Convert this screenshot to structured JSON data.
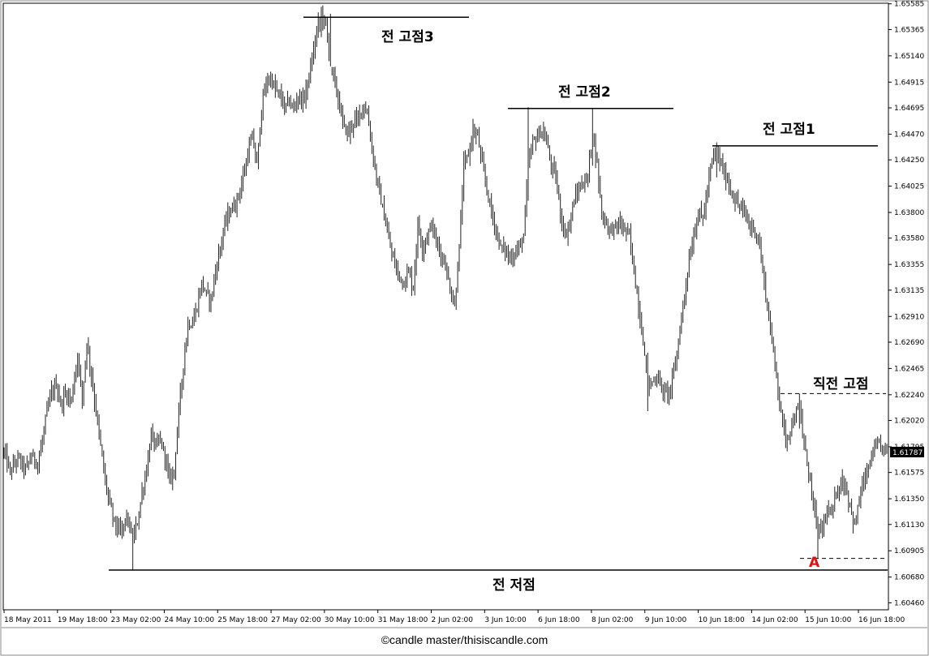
{
  "chart_data": {
    "type": "bar",
    "title": "",
    "xlabel": "",
    "ylabel": "",
    "ylim": [
      1.604,
      1.6559
    ],
    "y_ticks": [
      "1.65585",
      "1.65365",
      "1.65140",
      "1.64915",
      "1.64695",
      "1.64470",
      "1.64250",
      "1.64025",
      "1.63800",
      "1.63580",
      "1.63355",
      "1.63135",
      "1.62910",
      "1.62690",
      "1.62465",
      "1.62240",
      "1.62020",
      "1.61795",
      "1.61575",
      "1.61350",
      "1.61130",
      "1.60905",
      "1.60680",
      "1.60460"
    ],
    "x_ticks": [
      "18 May 2011",
      "19 May 18:00",
      "23 May 02:00",
      "24 May 10:00",
      "25 May 18:00",
      "27 May 02:00",
      "30 May 10:00",
      "31 May 18:00",
      "2 Jun 02:00",
      "3 Jun 10:00",
      "6 Jun 18:00",
      "8 Jun 02:00",
      "9 Jun 10:00",
      "10 Jun 18:00",
      "14 Jun 02:00",
      "15 Jun 10:00",
      "16 Jun 18:00"
    ],
    "current_price": "1.61787",
    "close_path": [
      [
        0,
        1.6175
      ],
      [
        4,
        1.6158
      ],
      [
        9,
        1.617
      ],
      [
        14,
        1.616
      ],
      [
        18,
        1.6172
      ],
      [
        22,
        1.6165
      ],
      [
        25,
        1.6185
      ],
      [
        28,
        1.621
      ],
      [
        31,
        1.6225
      ],
      [
        34,
        1.6233
      ],
      [
        37,
        1.6215
      ],
      [
        40,
        1.6225
      ],
      [
        44,
        1.622
      ],
      [
        48,
        1.6258
      ],
      [
        51,
        1.622
      ],
      [
        54,
        1.627
      ],
      [
        57,
        1.624
      ],
      [
        60,
        1.621
      ],
      [
        63,
        1.618
      ],
      [
        66,
        1.615
      ],
      [
        69,
        1.613
      ],
      [
        72,
        1.6115
      ],
      [
        76,
        1.6105
      ],
      [
        80,
        1.612
      ],
      [
        84,
        1.61
      ],
      [
        87,
        1.6115
      ],
      [
        90,
        1.614
      ],
      [
        93,
        1.616
      ],
      [
        96,
        1.619
      ],
      [
        99,
        1.618
      ],
      [
        102,
        1.6185
      ],
      [
        105,
        1.6172
      ],
      [
        108,
        1.615
      ],
      [
        111,
        1.616
      ],
      [
        114,
        1.621
      ],
      [
        117,
        1.625
      ],
      [
        120,
        1.6285
      ],
      [
        123,
        1.6285
      ],
      [
        126,
        1.63
      ],
      [
        129,
        1.632
      ],
      [
        132,
        1.631
      ],
      [
        135,
        1.6305
      ],
      [
        138,
        1.633
      ],
      [
        141,
        1.635
      ],
      [
        144,
        1.637
      ],
      [
        147,
        1.638
      ],
      [
        150,
        1.6385
      ],
      [
        153,
        1.6395
      ],
      [
        156,
        1.641
      ],
      [
        159,
        1.643
      ],
      [
        162,
        1.6445
      ],
      [
        165,
        1.642
      ],
      [
        168,
        1.647
      ],
      [
        171,
        1.649
      ],
      [
        174,
        1.6495
      ],
      [
        177,
        1.6485
      ],
      [
        180,
        1.648
      ],
      [
        183,
        1.647
      ],
      [
        186,
        1.6475
      ],
      [
        189,
        1.6468
      ],
      [
        192,
        1.648
      ],
      [
        195,
        1.6475
      ],
      [
        198,
        1.649
      ],
      [
        201,
        1.651
      ],
      [
        204,
        1.6535
      ],
      [
        207,
        1.655
      ],
      [
        210,
        1.654
      ],
      [
        213,
        1.6505
      ],
      [
        216,
        1.649
      ],
      [
        219,
        1.647
      ],
      [
        222,
        1.6452
      ],
      [
        225,
        1.6448
      ],
      [
        228,
        1.6458
      ],
      [
        231,
        1.646
      ],
      [
        234,
        1.6472
      ],
      [
        237,
        1.6465
      ],
      [
        240,
        1.6435
      ],
      [
        243,
        1.641
      ],
      [
        246,
        1.639
      ],
      [
        249,
        1.637
      ],
      [
        252,
        1.635
      ],
      [
        255,
        1.6335
      ],
      [
        258,
        1.6325
      ],
      [
        261,
        1.632
      ],
      [
        264,
        1.633
      ],
      [
        267,
        1.6315
      ],
      [
        270,
        1.637
      ],
      [
        273,
        1.635
      ],
      [
        276,
        1.636
      ],
      [
        279,
        1.637
      ],
      [
        282,
        1.6355
      ],
      [
        285,
        1.6345
      ],
      [
        288,
        1.6335
      ],
      [
        291,
        1.6315
      ],
      [
        294,
        1.63
      ],
      [
        297,
        1.635
      ],
      [
        300,
        1.642
      ],
      [
        303,
        1.643
      ],
      [
        306,
        1.645
      ],
      [
        309,
        1.6445
      ],
      [
        312,
        1.642
      ],
      [
        315,
        1.64
      ],
      [
        318,
        1.638
      ],
      [
        321,
        1.6365
      ],
      [
        324,
        1.635
      ],
      [
        327,
        1.6348
      ],
      [
        330,
        1.634
      ],
      [
        333,
        1.6345
      ],
      [
        336,
        1.635
      ],
      [
        339,
        1.636
      ],
      [
        342,
        1.642
      ],
      [
        345,
        1.644
      ],
      [
        348,
        1.6445
      ],
      [
        351,
        1.645
      ],
      [
        354,
        1.644
      ],
      [
        357,
        1.642
      ],
      [
        360,
        1.641
      ],
      [
        363,
        1.638
      ],
      [
        366,
        1.636
      ],
      [
        369,
        1.637
      ],
      [
        372,
        1.639
      ],
      [
        375,
        1.64
      ],
      [
        378,
        1.6405
      ],
      [
        381,
        1.641
      ],
      [
        384,
        1.645
      ],
      [
        387,
        1.642
      ],
      [
        390,
        1.638
      ],
      [
        393,
        1.637
      ],
      [
        396,
        1.6365
      ],
      [
        399,
        1.6368
      ],
      [
        402,
        1.637
      ],
      [
        405,
        1.6365
      ],
      [
        408,
        1.636
      ],
      [
        411,
        1.633
      ],
      [
        414,
        1.63
      ],
      [
        417,
        1.627
      ],
      [
        420,
        1.623
      ],
      [
        423,
        1.6235
      ],
      [
        426,
        1.624
      ],
      [
        429,
        1.623
      ],
      [
        432,
        1.6225
      ],
      [
        435,
        1.623
      ],
      [
        438,
        1.625
      ],
      [
        441,
        1.628
      ],
      [
        444,
        1.631
      ],
      [
        447,
        1.634
      ],
      [
        450,
        1.636
      ],
      [
        453,
        1.638
      ],
      [
        456,
        1.6375
      ],
      [
        459,
        1.64
      ],
      [
        462,
        1.6425
      ],
      [
        465,
        1.643
      ],
      [
        468,
        1.642
      ],
      [
        471,
        1.641
      ],
      [
        474,
        1.64
      ],
      [
        477,
        1.639
      ],
      [
        480,
        1.6385
      ],
      [
        483,
        1.638
      ],
      [
        486,
        1.637
      ],
      [
        489,
        1.6365
      ],
      [
        492,
        1.636
      ],
      [
        495,
        1.633
      ],
      [
        498,
        1.63
      ],
      [
        501,
        1.627
      ],
      [
        504,
        1.624
      ],
      [
        507,
        1.621
      ],
      [
        510,
        1.6185
      ],
      [
        513,
        1.6195
      ],
      [
        516,
        1.6205
      ],
      [
        519,
        1.6215
      ],
      [
        522,
        1.618
      ],
      [
        525,
        1.616
      ],
      [
        528,
        1.613
      ],
      [
        531,
        1.6105
      ],
      [
        534,
        1.611
      ],
      [
        537,
        1.6125
      ],
      [
        540,
        1.612
      ],
      [
        543,
        1.614
      ],
      [
        546,
        1.615
      ],
      [
        549,
        1.6145
      ],
      [
        552,
        1.613
      ],
      [
        555,
        1.611
      ],
      [
        558,
        1.6135
      ],
      [
        561,
        1.615
      ],
      [
        564,
        1.616
      ],
      [
        567,
        1.6175
      ],
      [
        570,
        1.618
      ],
      [
        573,
        1.6178
      ],
      [
        576,
        1.6179
      ]
    ],
    "annotations": {
      "prev_high_3": "전 고점3",
      "prev_high_2": "전 고점2",
      "prev_high_1": "전 고점1",
      "recent_high": "직전 고점",
      "prev_low": "전 저점",
      "point_a": "A"
    },
    "levels": {
      "prev_high_3": 1.6547,
      "prev_high_2": 1.6469,
      "prev_high_1": 1.6437,
      "recent_high": 1.6225,
      "point_a": 1.6084,
      "prev_low": 1.6074
    }
  },
  "footer": {
    "copyright": "©candle master/thisiscandle.com"
  }
}
